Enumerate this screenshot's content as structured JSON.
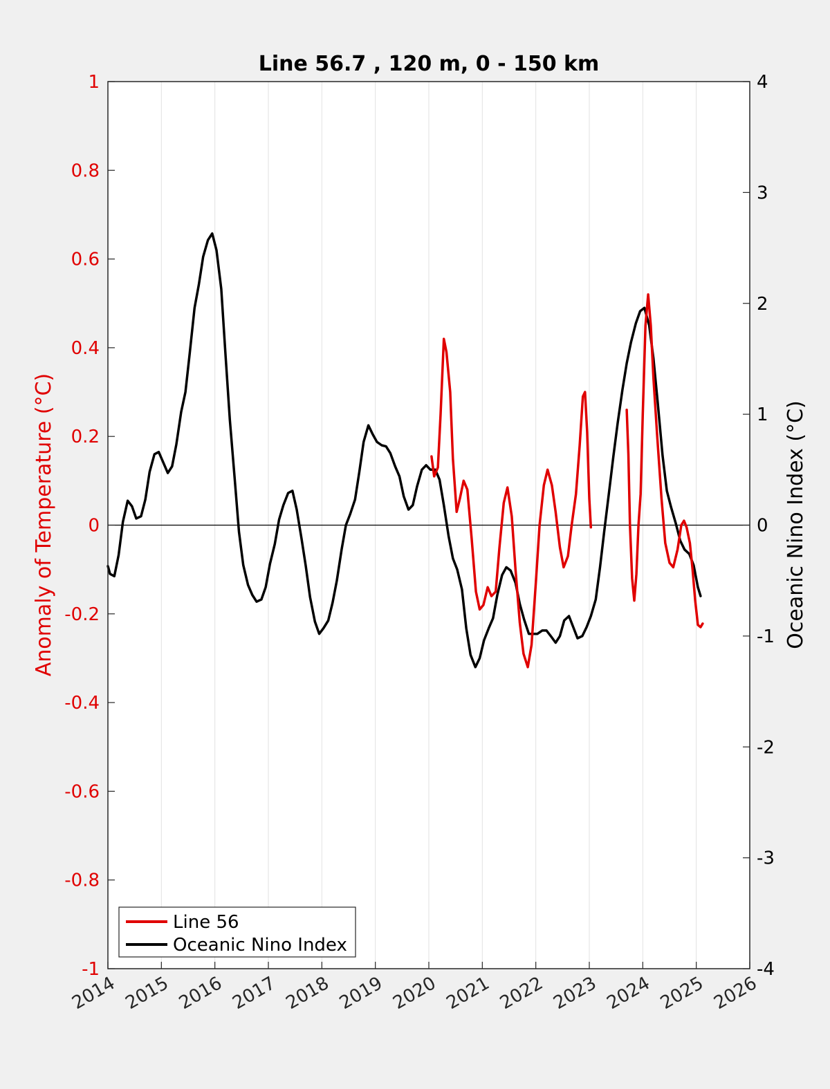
{
  "chart_data": {
    "type": "line",
    "title": "Line 56.7 , 120 m, 0 - 150 km",
    "xlabel": "",
    "x_ticks": [
      "2014",
      "2015",
      "2016",
      "2017",
      "2018",
      "2019",
      "2020",
      "2021",
      "2022",
      "2023",
      "2024",
      "2025",
      "2026"
    ],
    "xlim": [
      2014,
      2026
    ],
    "left_axis": {
      "label": "Anomaly of Temperature (°C)",
      "ylim": [
        -1,
        1
      ],
      "ticks": [
        "1",
        "0.8",
        "0.6",
        "0.4",
        "0.2",
        "0",
        "-0.2",
        "-0.4",
        "-0.6",
        "-0.8",
        "-1"
      ],
      "color": "#e00000"
    },
    "right_axis": {
      "label": "Oceanic Nino Index (°C)",
      "ylim": [
        -4,
        4
      ],
      "ticks": [
        "4",
        "3",
        "2",
        "1",
        "0",
        "-1",
        "-2",
        "-3",
        "-4"
      ],
      "color": "#000000"
    },
    "grid": "vertical",
    "legend": {
      "placement": "bottom-left",
      "entries": [
        "Line 56",
        "Oceanic Nino Index"
      ]
    },
    "series": [
      {
        "name": "Line 56",
        "axis": "left",
        "color": "#e00000",
        "segments": [
          [
            [
              2020.05,
              0.155
            ],
            [
              2020.1,
              0.11
            ],
            [
              2020.17,
              0.13
            ],
            [
              2020.22,
              0.25
            ],
            [
              2020.28,
              0.42
            ],
            [
              2020.33,
              0.39
            ],
            [
              2020.4,
              0.3
            ],
            [
              2020.45,
              0.15
            ],
            [
              2020.52,
              0.03
            ],
            [
              2020.58,
              0.06
            ],
            [
              2020.65,
              0.1
            ],
            [
              2020.72,
              0.08
            ],
            [
              2020.8,
              -0.03
            ],
            [
              2020.88,
              -0.15
            ],
            [
              2020.95,
              -0.19
            ],
            [
              2021.02,
              -0.18
            ],
            [
              2021.1,
              -0.14
            ],
            [
              2021.17,
              -0.16
            ],
            [
              2021.25,
              -0.15
            ],
            [
              2021.32,
              -0.05
            ],
            [
              2021.4,
              0.05
            ],
            [
              2021.47,
              0.085
            ],
            [
              2021.55,
              0.02
            ],
            [
              2021.62,
              -0.1
            ],
            [
              2021.7,
              -0.22
            ],
            [
              2021.77,
              -0.29
            ],
            [
              2021.85,
              -0.32
            ],
            [
              2021.92,
              -0.27
            ],
            [
              2022.0,
              -0.13
            ],
            [
              2022.07,
              0.0
            ],
            [
              2022.15,
              0.09
            ],
            [
              2022.22,
              0.125
            ],
            [
              2022.3,
              0.09
            ],
            [
              2022.37,
              0.03
            ],
            [
              2022.45,
              -0.05
            ],
            [
              2022.52,
              -0.095
            ],
            [
              2022.6,
              -0.07
            ],
            [
              2022.67,
              0.0
            ],
            [
              2022.75,
              0.07
            ],
            [
              2022.82,
              0.18
            ],
            [
              2022.88,
              0.29
            ],
            [
              2022.92,
              0.3
            ],
            [
              2022.96,
              0.21
            ],
            [
              2023.0,
              0.06
            ],
            [
              2023.03,
              -0.005
            ]
          ],
          [
            [
              2023.7,
              0.26
            ],
            [
              2023.73,
              0.16
            ],
            [
              2023.76,
              0.0
            ],
            [
              2023.8,
              -0.12
            ],
            [
              2023.84,
              -0.17
            ],
            [
              2023.88,
              -0.11
            ],
            [
              2023.92,
              0.0
            ],
            [
              2023.96,
              0.07
            ],
            [
              2024.0,
              0.25
            ],
            [
              2024.05,
              0.45
            ],
            [
              2024.1,
              0.52
            ],
            [
              2024.15,
              0.45
            ],
            [
              2024.2,
              0.33
            ],
            [
              2024.27,
              0.2
            ],
            [
              2024.35,
              0.06
            ],
            [
              2024.42,
              -0.04
            ],
            [
              2024.5,
              -0.085
            ],
            [
              2024.57,
              -0.095
            ],
            [
              2024.65,
              -0.055
            ],
            [
              2024.72,
              0.0
            ],
            [
              2024.77,
              0.01
            ],
            [
              2024.82,
              -0.005
            ],
            [
              2024.88,
              -0.04
            ],
            [
              2024.93,
              -0.1
            ],
            [
              2024.98,
              -0.17
            ],
            [
              2025.03,
              -0.225
            ],
            [
              2025.08,
              -0.23
            ],
            [
              2025.12,
              -0.222
            ]
          ]
        ]
      },
      {
        "name": "Oceanic Nino Index",
        "axis": "right",
        "color": "#000000",
        "segments": [
          [
            [
              2014.0,
              -0.37
            ],
            [
              2014.04,
              -0.44
            ],
            [
              2014.12,
              -0.46
            ],
            [
              2014.2,
              -0.27
            ],
            [
              2014.28,
              0.03
            ],
            [
              2014.37,
              0.22
            ],
            [
              2014.45,
              0.17
            ],
            [
              2014.53,
              0.06
            ],
            [
              2014.62,
              0.08
            ],
            [
              2014.7,
              0.23
            ],
            [
              2014.78,
              0.48
            ],
            [
              2014.87,
              0.64
            ],
            [
              2014.95,
              0.66
            ],
            [
              2015.03,
              0.57
            ],
            [
              2015.12,
              0.47
            ],
            [
              2015.2,
              0.53
            ],
            [
              2015.28,
              0.73
            ],
            [
              2015.37,
              1.02
            ],
            [
              2015.45,
              1.2
            ],
            [
              2015.53,
              1.55
            ],
            [
              2015.62,
              1.96
            ],
            [
              2015.7,
              2.17
            ],
            [
              2015.78,
              2.42
            ],
            [
              2015.87,
              2.57
            ],
            [
              2015.95,
              2.63
            ],
            [
              2016.03,
              2.48
            ],
            [
              2016.12,
              2.13
            ],
            [
              2016.2,
              1.53
            ],
            [
              2016.28,
              0.95
            ],
            [
              2016.37,
              0.42
            ],
            [
              2016.45,
              -0.06
            ],
            [
              2016.53,
              -0.36
            ],
            [
              2016.62,
              -0.54
            ],
            [
              2016.7,
              -0.63
            ],
            [
              2016.78,
              -0.69
            ],
            [
              2016.87,
              -0.67
            ],
            [
              2016.95,
              -0.56
            ],
            [
              2017.03,
              -0.35
            ],
            [
              2017.12,
              -0.17
            ],
            [
              2017.2,
              0.05
            ],
            [
              2017.28,
              0.18
            ],
            [
              2017.37,
              0.29
            ],
            [
              2017.45,
              0.31
            ],
            [
              2017.53,
              0.14
            ],
            [
              2017.62,
              -0.12
            ],
            [
              2017.7,
              -0.37
            ],
            [
              2017.78,
              -0.65
            ],
            [
              2017.87,
              -0.87
            ],
            [
              2017.95,
              -0.98
            ],
            [
              2018.03,
              -0.93
            ],
            [
              2018.12,
              -0.86
            ],
            [
              2018.2,
              -0.7
            ],
            [
              2018.28,
              -0.5
            ],
            [
              2018.37,
              -0.22
            ],
            [
              2018.45,
              0.0
            ],
            [
              2018.53,
              0.1
            ],
            [
              2018.62,
              0.23
            ],
            [
              2018.7,
              0.48
            ],
            [
              2018.78,
              0.75
            ],
            [
              2018.87,
              0.9
            ],
            [
              2018.95,
              0.82
            ],
            [
              2019.03,
              0.75
            ],
            [
              2019.12,
              0.72
            ],
            [
              2019.2,
              0.71
            ],
            [
              2019.28,
              0.65
            ],
            [
              2019.37,
              0.53
            ],
            [
              2019.45,
              0.44
            ],
            [
              2019.53,
              0.26
            ],
            [
              2019.62,
              0.14
            ],
            [
              2019.7,
              0.18
            ],
            [
              2019.78,
              0.35
            ],
            [
              2019.87,
              0.5
            ],
            [
              2019.95,
              0.54
            ],
            [
              2020.03,
              0.5
            ],
            [
              2020.12,
              0.5
            ],
            [
              2020.2,
              0.41
            ],
            [
              2020.28,
              0.18
            ],
            [
              2020.37,
              -0.1
            ],
            [
              2020.45,
              -0.3
            ],
            [
              2020.53,
              -0.4
            ],
            [
              2020.62,
              -0.58
            ],
            [
              2020.7,
              -0.93
            ],
            [
              2020.78,
              -1.17
            ],
            [
              2020.87,
              -1.28
            ],
            [
              2020.95,
              -1.2
            ],
            [
              2021.03,
              -1.04
            ],
            [
              2021.12,
              -0.93
            ],
            [
              2021.2,
              -0.84
            ],
            [
              2021.28,
              -0.63
            ],
            [
              2021.37,
              -0.45
            ],
            [
              2021.45,
              -0.38
            ],
            [
              2021.53,
              -0.41
            ],
            [
              2021.62,
              -0.52
            ],
            [
              2021.7,
              -0.71
            ],
            [
              2021.78,
              -0.85
            ],
            [
              2021.87,
              -0.98
            ],
            [
              2021.95,
              -0.98
            ],
            [
              2022.03,
              -0.98
            ],
            [
              2022.12,
              -0.95
            ],
            [
              2022.2,
              -0.95
            ],
            [
              2022.28,
              -1.0
            ],
            [
              2022.37,
              -1.06
            ],
            [
              2022.45,
              -1.0
            ],
            [
              2022.53,
              -0.86
            ],
            [
              2022.62,
              -0.82
            ],
            [
              2022.7,
              -0.92
            ],
            [
              2022.78,
              -1.02
            ],
            [
              2022.87,
              -1.0
            ],
            [
              2022.95,
              -0.92
            ],
            [
              2023.03,
              -0.82
            ],
            [
              2023.12,
              -0.67
            ],
            [
              2023.2,
              -0.38
            ],
            [
              2023.28,
              -0.05
            ],
            [
              2023.37,
              0.3
            ],
            [
              2023.45,
              0.62
            ],
            [
              2023.53,
              0.92
            ],
            [
              2023.62,
              1.22
            ],
            [
              2023.7,
              1.46
            ],
            [
              2023.78,
              1.65
            ],
            [
              2023.87,
              1.82
            ],
            [
              2023.95,
              1.93
            ],
            [
              2024.03,
              1.96
            ],
            [
              2024.12,
              1.8
            ],
            [
              2024.2,
              1.5
            ],
            [
              2024.28,
              1.1
            ],
            [
              2024.37,
              0.63
            ],
            [
              2024.45,
              0.31
            ],
            [
              2024.53,
              0.16
            ],
            [
              2024.62,
              0.01
            ],
            [
              2024.7,
              -0.14
            ],
            [
              2024.78,
              -0.22
            ],
            [
              2024.87,
              -0.26
            ],
            [
              2024.95,
              -0.36
            ],
            [
              2025.03,
              -0.56
            ],
            [
              2025.08,
              -0.64
            ]
          ]
        ]
      }
    ]
  }
}
